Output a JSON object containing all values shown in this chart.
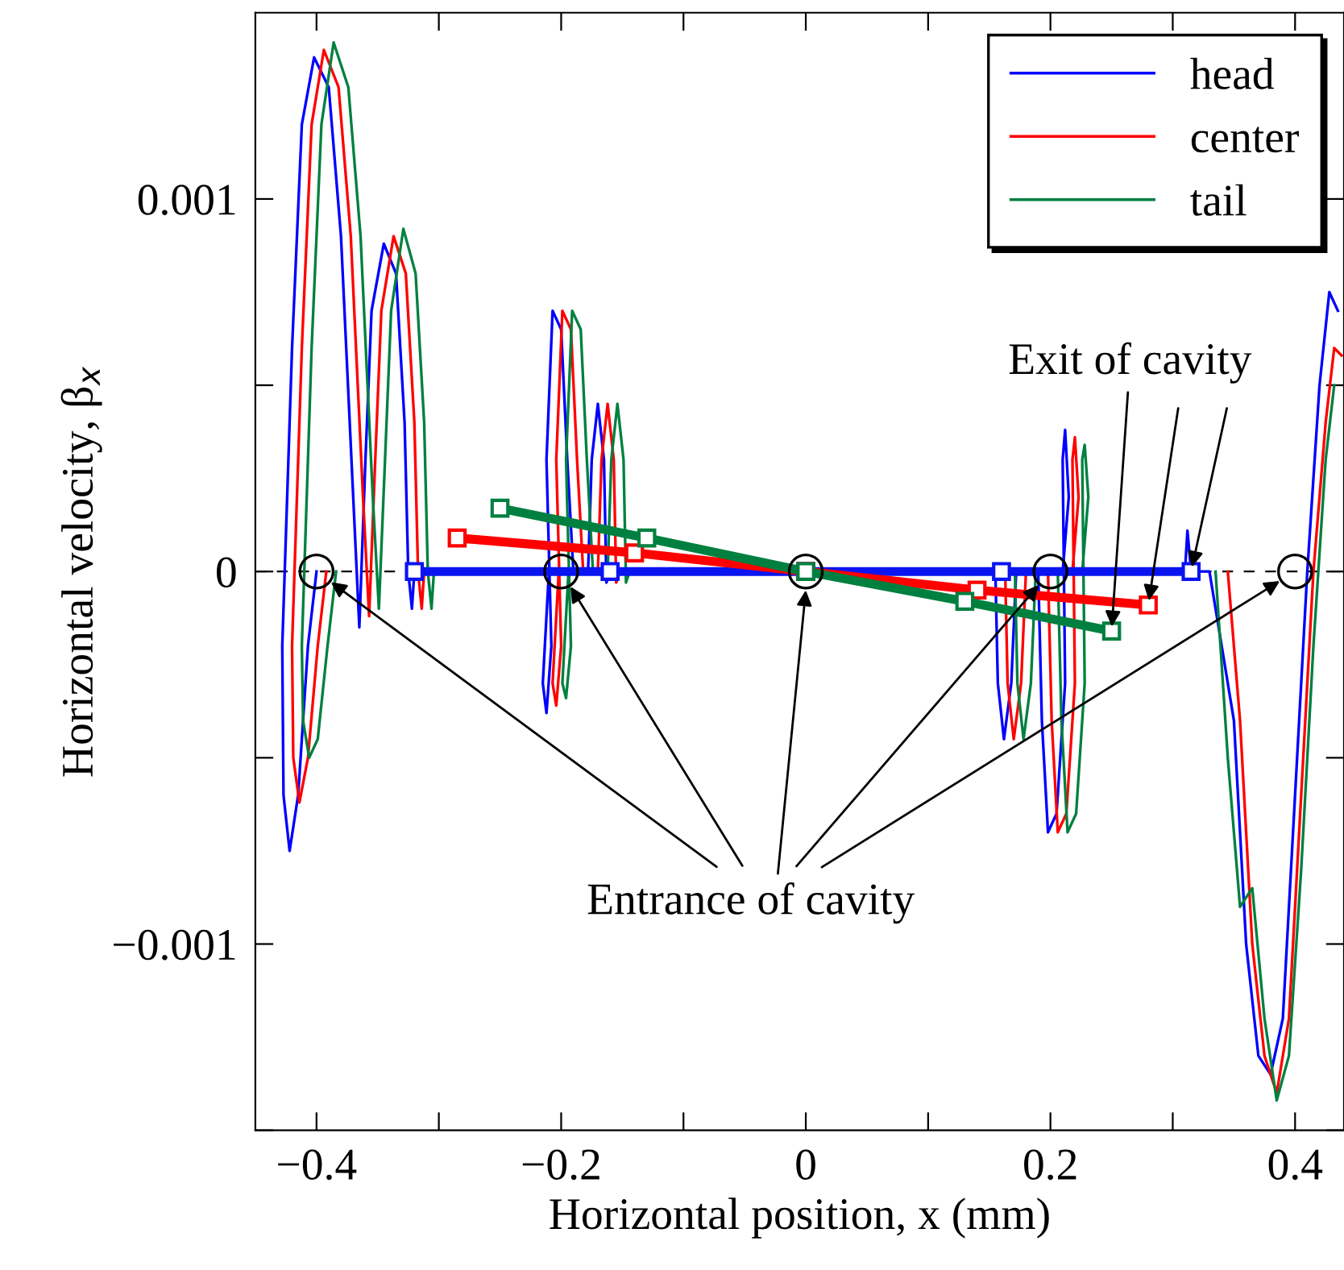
{
  "chart_data": {
    "type": "line",
    "xlabel": "Horizontal position, x (mm)",
    "ylabel": "Horizontal velocity, β$_{x}$",
    "xlim": [
      -0.45,
      0.44
    ],
    "ylim": [
      -0.0015,
      0.0015
    ],
    "xticks": [
      {
        "value": -0.4,
        "label": "−0.4"
      },
      {
        "value": -0.3,
        "label": null
      },
      {
        "value": -0.2,
        "label": "−0.2"
      },
      {
        "value": -0.1,
        "label": null
      },
      0,
      {
        "value": 0.1,
        "label": null
      },
      0.2,
      {
        "value": 0.3,
        "label": null
      },
      0.4
    ],
    "yticks": [
      {
        "value": -0.0015,
        "label": null
      },
      {
        "value": -0.001,
        "label": "−0.001"
      },
      {
        "value": -0.0005,
        "label": null
      },
      0,
      {
        "value": 0.0005,
        "label": null
      },
      {
        "value": 0.001,
        "label": "0.001"
      }
    ],
    "legend": "top right",
    "grid": false,
    "series": [
      {
        "name": "head",
        "color": "#0000ff",
        "marker": "none",
        "x": [
          -0.4,
          -0.407,
          -0.415,
          -0.422,
          -0.427,
          -0.428,
          -0.42,
          -0.412,
          -0.402,
          -0.39,
          -0.38,
          -0.37,
          -0.365,
          -0.36,
          -0.355,
          -0.345,
          -0.335,
          -0.328,
          -0.325,
          -0.322,
          -0.32,
          -0.3,
          -0.21,
          -0.215,
          -0.212,
          -0.208,
          -0.212,
          -0.207,
          -0.2,
          -0.195,
          -0.19,
          -0.178,
          -0.175,
          -0.17,
          -0.165,
          -0.163,
          -0.16,
          0,
          0.155,
          0.157,
          0.162,
          0.168,
          0.172,
          0.19,
          0.193,
          0.198,
          0.205,
          0.212,
          0.21,
          0.212,
          0.215,
          0.21,
          0.3,
          0.31,
          0.312,
          0.315,
          0.33,
          0.35,
          0.36,
          0.37,
          0.38,
          0.39,
          0.4,
          0.41,
          0.42,
          0.428,
          0.435
        ],
        "values": [
          0,
          -0.0002,
          -0.0006,
          -0.00075,
          -0.0006,
          -0.0002,
          0.0006,
          0.0012,
          0.00138,
          0.0013,
          0.0009,
          0.0002,
          -0.00015,
          0.0003,
          0.0007,
          0.00088,
          0.0008,
          0.0004,
          0,
          -0.0001,
          0,
          null,
          0,
          -0.0003,
          -0.00038,
          -0.0002,
          0.0003,
          0.0007,
          0.00065,
          0.0003,
          0,
          0,
          0.0003,
          0.00045,
          0.0003,
          -3e-05,
          0,
          null,
          0,
          -0.0003,
          -0.00045,
          -0.0003,
          0,
          0,
          -0.0004,
          -0.0007,
          -0.00065,
          -0.0003,
          0.0003,
          0.00038,
          0.0002,
          0,
          null,
          0,
          0.00011,
          0,
          0,
          -0.0004,
          -0.001,
          -0.0013,
          -0.00135,
          -0.0012,
          -0.0006,
          0,
          0.0005,
          0.00075,
          0.0007
        ]
      },
      {
        "name": "center",
        "color": "#ff0000",
        "marker": "none",
        "x": [
          -0.392,
          -0.399,
          -0.407,
          -0.414,
          -0.419,
          -0.42,
          -0.412,
          -0.404,
          -0.394,
          -0.382,
          -0.372,
          -0.362,
          -0.357,
          -0.352,
          -0.347,
          -0.337,
          -0.327,
          -0.32,
          -0.317,
          -0.314,
          -0.312,
          -0.3,
          -0.202,
          -0.207,
          -0.204,
          -0.2,
          -0.204,
          -0.199,
          -0.192,
          -0.187,
          -0.182,
          -0.17,
          -0.167,
          -0.162,
          -0.157,
          -0.155,
          -0.152,
          0,
          0.163,
          0.165,
          0.17,
          0.176,
          0.18,
          0.198,
          0.201,
          0.206,
          0.213,
          0.22,
          0.218,
          0.22,
          0.223,
          0.218,
          0.3,
          0.345,
          0.355,
          0.365,
          0.375,
          0.385,
          0.395,
          0.405,
          0.415,
          0.425,
          0.432,
          0.438
        ],
        "values": [
          0,
          -0.0002,
          -0.0005,
          -0.00062,
          -0.0005,
          -0.0002,
          0.0006,
          0.0012,
          0.0014,
          0.0013,
          0.0009,
          0.0002,
          -0.00012,
          0.0003,
          0.0007,
          0.0009,
          0.0008,
          0.0004,
          0,
          -0.0001,
          0,
          null,
          0,
          -0.0003,
          -0.00036,
          -0.0002,
          0.0003,
          0.0007,
          0.00065,
          0.0003,
          0,
          0,
          0.0003,
          0.00045,
          0.0003,
          -3e-05,
          0,
          null,
          0,
          -0.0003,
          -0.00045,
          -0.0003,
          0,
          0,
          -0.0004,
          -0.0007,
          -0.00065,
          -0.0003,
          0.0003,
          0.00036,
          0.0002,
          0,
          null,
          0,
          -0.0004,
          -0.001,
          -0.0013,
          -0.0014,
          -0.0012,
          -0.0006,
          0,
          0.0004,
          0.0006,
          0.00058
        ]
      },
      {
        "name": "tail",
        "color": "#008040",
        "marker": "none",
        "x": [
          -0.384,
          -0.391,
          -0.399,
          -0.406,
          -0.411,
          -0.412,
          -0.404,
          -0.396,
          -0.386,
          -0.374,
          -0.364,
          -0.354,
          -0.349,
          -0.344,
          -0.339,
          -0.329,
          -0.319,
          -0.312,
          -0.309,
          -0.306,
          -0.304,
          -0.3,
          -0.194,
          -0.199,
          -0.196,
          -0.192,
          -0.196,
          -0.191,
          -0.184,
          -0.179,
          -0.174,
          -0.162,
          -0.159,
          -0.154,
          -0.149,
          -0.147,
          -0.144,
          0,
          0.171,
          0.173,
          0.178,
          0.184,
          0.188,
          0.206,
          0.209,
          0.214,
          0.221,
          0.228,
          0.226,
          0.228,
          0.231,
          0.226,
          0.3,
          0.335,
          0.345,
          0.355,
          0.365,
          0.375,
          0.385,
          0.395,
          0.405,
          0.415,
          0.425,
          0.432
        ],
        "values": [
          0,
          -0.0002,
          -0.00045,
          -0.0005,
          -0.0004,
          -0.0002,
          0.0006,
          0.0012,
          0.00142,
          0.0013,
          0.0009,
          0.0002,
          -0.0001,
          0.0003,
          0.0007,
          0.00092,
          0.0008,
          0.0004,
          0,
          -0.0001,
          0,
          null,
          0,
          -0.0003,
          -0.00034,
          -0.0002,
          0.0003,
          0.0007,
          0.00065,
          0.0003,
          0,
          0,
          0.0003,
          0.00045,
          0.0003,
          -3e-05,
          0,
          null,
          0,
          -0.0003,
          -0.00045,
          -0.0003,
          0,
          0,
          -0.0004,
          -0.0007,
          -0.00065,
          -0.0003,
          0.0003,
          0.00034,
          0.0002,
          0,
          null,
          0,
          -0.0005,
          -0.0009,
          -0.00085,
          -0.0012,
          -0.00142,
          -0.0013,
          -0.0008,
          -0.0002,
          0.0003,
          0.0005
        ]
      },
      {
        "color": "#0a14f0",
        "type": "line",
        "marker": "square",
        "x": [
          -0.32,
          -0.16,
          0,
          0.16,
          0.315
        ],
        "values": [
          0,
          0,
          0,
          0,
          0
        ]
      },
      {
        "color": "#ff0000",
        "type": "line",
        "marker": "square",
        "x": [
          -0.285,
          -0.14,
          0,
          0.14,
          0.28
        ],
        "values": [
          9e-05,
          5e-05,
          0,
          -5e-05,
          -9e-05
        ]
      },
      {
        "color": "#008040",
        "type": "line",
        "marker": "square",
        "x": [
          -0.25,
          -0.13,
          0,
          0.13,
          0.25
        ],
        "values": [
          0.00017,
          9e-05,
          0,
          -8e-05,
          -0.00016
        ]
      },
      {
        "color": "#000000",
        "type": "scatter",
        "marker": "circle",
        "x": [
          -0.4,
          -0.2,
          0,
          0.2,
          0.4
        ],
        "values": [
          0,
          0,
          0,
          0,
          0
        ]
      }
    ],
    "ref_lines": [
      {
        "axis": "y",
        "value": 0,
        "color": "#000000",
        "line_style": "dashed"
      }
    ],
    "annotations": [
      {
        "text": "Exit of cavity",
        "x": 0.25,
        "y": -0.00016
      },
      {
        "text": "Entrance of cavity",
        "x": 0,
        "y": -5e-05
      }
    ]
  }
}
